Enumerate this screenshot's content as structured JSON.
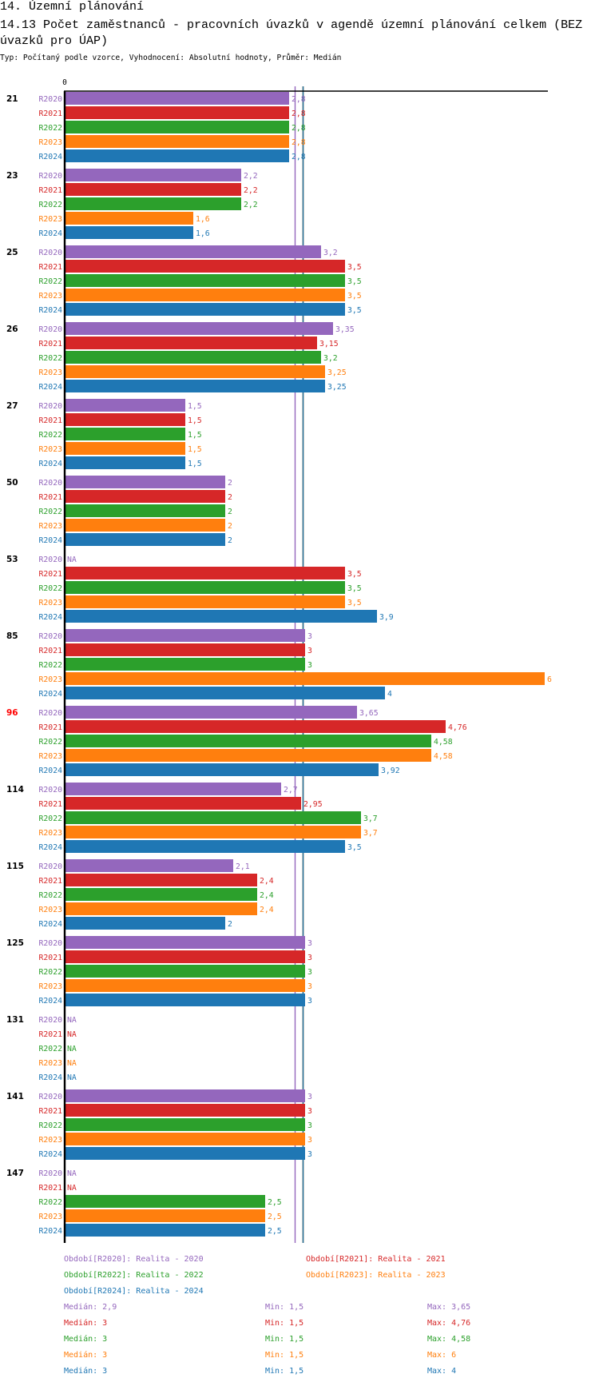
{
  "header": {
    "title": "14. Územní plánování",
    "subtitle": "14.13 Počet zaměstnanců - pracovních úvazků v agendě územní plánování celkem (BEZ úvazků pro ÚAP)",
    "meta": "Typ: Počítaný podle vzorce, Vyhodnocení: Absolutní hodnoty, Průměr: Medián"
  },
  "chart_data": {
    "type": "bar",
    "orientation": "horizontal",
    "title": "14.13 Počet zaměstnanců - pracovních úvazků v agendě územní plánování celkem (BEZ úvazků pro ÚAP)",
    "xlabel": "",
    "ylabel": "",
    "x_ticks": [
      {
        "value": 0,
        "label": "0"
      }
    ],
    "xlim": [
      0,
      6.05
    ],
    "grid": false,
    "decimal_separator": ",",
    "na_label": "NA",
    "category_label_color": "#000000",
    "highlighted_category": "96",
    "highlight_color": "#ff0000",
    "categories": [
      "21",
      "23",
      "25",
      "26",
      "27",
      "50",
      "53",
      "85",
      "96",
      "114",
      "115",
      "125",
      "131",
      "141",
      "147"
    ],
    "series": [
      {
        "name": "R2020",
        "color": "#9467bd",
        "values": [
          2.8,
          2.2,
          3.2,
          3.35,
          1.5,
          2,
          null,
          3,
          3.65,
          2.7,
          2.1,
          3,
          null,
          3,
          null
        ]
      },
      {
        "name": "R2021",
        "color": "#d62728",
        "values": [
          2.8,
          2.2,
          3.5,
          3.15,
          1.5,
          2,
          3.5,
          3,
          4.76,
          2.95,
          2.4,
          3,
          null,
          3,
          null
        ]
      },
      {
        "name": "R2022",
        "color": "#2ca02c",
        "values": [
          2.8,
          2.2,
          3.5,
          3.2,
          1.5,
          2,
          3.5,
          3,
          4.58,
          3.7,
          2.4,
          3,
          null,
          3,
          2.5
        ]
      },
      {
        "name": "R2023",
        "color": "#ff7f0e",
        "values": [
          2.8,
          1.6,
          3.5,
          3.25,
          1.5,
          2,
          3.5,
          6,
          4.58,
          3.7,
          2.4,
          3,
          null,
          3,
          2.5
        ]
      },
      {
        "name": "R2024",
        "color": "#1f77b4",
        "values": [
          2.8,
          1.6,
          3.5,
          3.25,
          1.5,
          2,
          3.9,
          4,
          3.92,
          3.5,
          2,
          3,
          null,
          3,
          2.5
        ]
      }
    ],
    "reference_lines": [
      {
        "series": "R2020",
        "kind": "median",
        "value": 2.9
      },
      {
        "series": "R2021",
        "kind": "median",
        "value": 3
      },
      {
        "series": "R2022",
        "kind": "median",
        "value": 3
      },
      {
        "series": "R2023",
        "kind": "median",
        "value": 3
      },
      {
        "series": "R2024",
        "kind": "median",
        "value": 3
      }
    ]
  },
  "legend": {
    "periods": [
      {
        "series": "R2020",
        "color": "#9467bd",
        "label": "Období[R2020]: Realita - 2020"
      },
      {
        "series": "R2021",
        "color": "#d62728",
        "label": "Období[R2021]: Realita - 2021"
      },
      {
        "series": "R2022",
        "color": "#2ca02c",
        "label": "Období[R2022]: Realita - 2022"
      },
      {
        "series": "R2023",
        "color": "#ff7f0e",
        "label": "Období[R2023]: Realita - 2023"
      },
      {
        "series": "R2024",
        "color": "#1f77b4",
        "label": "Období[R2024]: Realita - 2024"
      }
    ],
    "stats": [
      {
        "series": "R2020",
        "color": "#9467bd",
        "median": "Medián: 2,9",
        "min": "Min: 1,5",
        "max": "Max: 3,65"
      },
      {
        "series": "R2021",
        "color": "#d62728",
        "median": "Medián: 3",
        "min": "Min: 1,5",
        "max": "Max: 4,76"
      },
      {
        "series": "R2022",
        "color": "#2ca02c",
        "median": "Medián: 3",
        "min": "Min: 1,5",
        "max": "Max: 4,58"
      },
      {
        "series": "R2023",
        "color": "#ff7f0e",
        "median": "Medián: 3",
        "min": "Min: 1,5",
        "max": "Max: 6"
      },
      {
        "series": "R2024",
        "color": "#1f77b4",
        "median": "Medián: 3",
        "min": "Min: 1,5",
        "max": "Max: 4"
      }
    ]
  }
}
